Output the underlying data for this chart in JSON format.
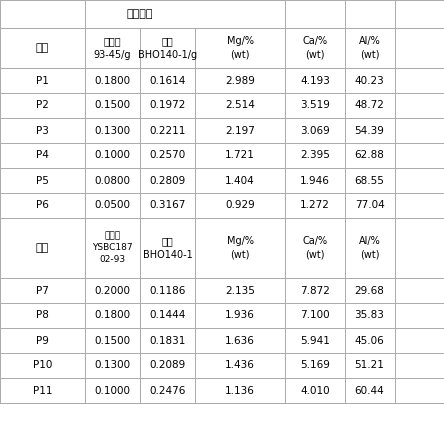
{
  "title": "配比方案",
  "header1": {
    "col0": "编号",
    "col1_main": "配比方案",
    "col1a": "磁铁矿\n93-45/g",
    "col1b": "矸土\nBHO140-1/g",
    "col2": "Mg/%\n(wt)",
    "col3": "Ca/%\n(wt)",
    "col4": "Al/%\n(wt)"
  },
  "header2": {
    "col0": "编号",
    "col1a": "烧结矿\nYSBC187\n02-93",
    "col1b": "矸土\nBHO140-1",
    "col2": "Mg/%\n(wt)",
    "col3": "Ca/%\n(wt)",
    "col4": "Al/%\n(wt)"
  },
  "rows1": [
    [
      "P1",
      "0.1800",
      "0.1614",
      "2.989",
      "4.193",
      "40.23"
    ],
    [
      "P2",
      "0.1500",
      "0.1972",
      "2.514",
      "3.519",
      "48.72"
    ],
    [
      "P3",
      "0.1300",
      "0.2211",
      "2.197",
      "3.069",
      "54.39"
    ],
    [
      "P4",
      "0.1000",
      "0.2570",
      "1.721",
      "2.395",
      "62.88"
    ],
    [
      "P5",
      "0.0800",
      "0.2809",
      "1.404",
      "1.946",
      "68.55"
    ],
    [
      "P6",
      "0.0500",
      "0.3167",
      "0.929",
      "1.272",
      "77.04"
    ]
  ],
  "rows2": [
    [
      "P7",
      "0.2000",
      "0.1186",
      "2.135",
      "7.872",
      "29.68"
    ],
    [
      "P8",
      "0.1800",
      "0.1444",
      "1.936",
      "7.100",
      "35.83"
    ],
    [
      "P9",
      "0.1500",
      "0.1831",
      "1.636",
      "5.941",
      "45.06"
    ],
    [
      "P10",
      "0.1300",
      "0.2089",
      "1.436",
      "5.169",
      "51.21"
    ],
    [
      "P11",
      "0.1000",
      "0.2476",
      "1.136",
      "4.010",
      "60.44"
    ]
  ],
  "bg_color": "#ffffff",
  "line_color": "#aaaaaa",
  "text_color": "#000000",
  "font_size": 7.5
}
